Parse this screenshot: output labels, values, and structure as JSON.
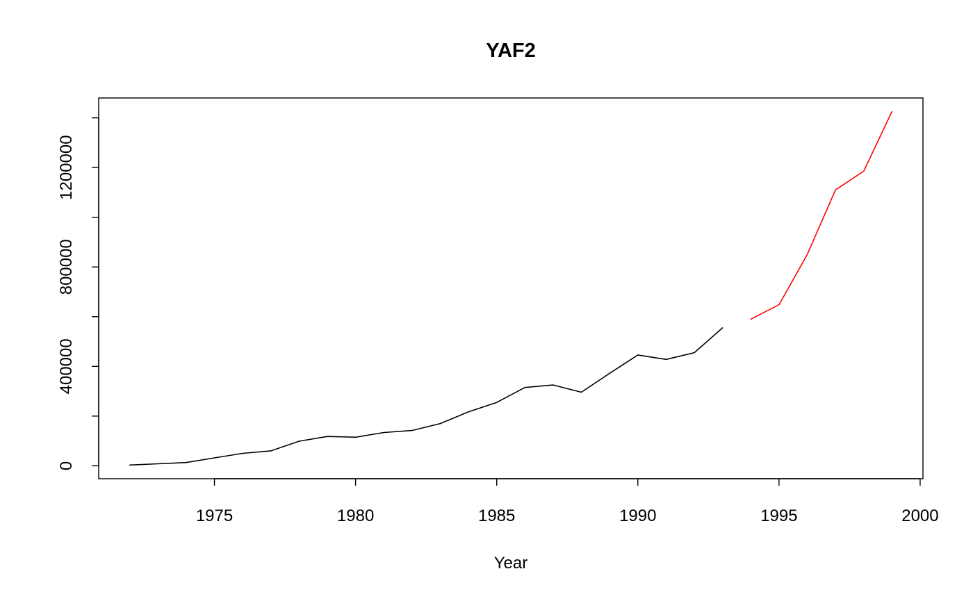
{
  "chart_data": {
    "type": "line",
    "title": "YAF2",
    "xlabel": "Year",
    "ylabel": "",
    "xlim": [
      1970.9,
      2000.1
    ],
    "ylim": [
      -52000,
      1480000
    ],
    "xticks": [
      1975,
      1980,
      1985,
      1990,
      1995,
      2000
    ],
    "yticks": [
      0,
      200000,
      400000,
      600000,
      800000,
      1000000,
      1200000,
      1400000
    ],
    "ytick_labels": [
      "0",
      "",
      "400000",
      "",
      "800000",
      "",
      "1200000",
      ""
    ],
    "grid": false,
    "legend": "none",
    "series": [
      {
        "color": "#000000",
        "x": [
          1972,
          1973,
          1974,
          1975,
          1976,
          1977,
          1978,
          1979,
          1980,
          1981,
          1982,
          1983,
          1984,
          1985,
          1986,
          1987,
          1988,
          1989,
          1990,
          1991,
          1992,
          1993
        ],
        "y": [
          3000,
          8000,
          13000,
          32000,
          50000,
          60000,
          99000,
          118000,
          115000,
          134000,
          142000,
          170000,
          217000,
          255000,
          315000,
          325000,
          296000,
          372000,
          446000,
          428000,
          455000,
          555000
        ]
      },
      {
        "color": "#ff0000",
        "x": [
          1994,
          1995,
          1996,
          1997,
          1998,
          1999
        ],
        "y": [
          590000,
          648000,
          850000,
          1110000,
          1185000,
          1425000
        ]
      }
    ]
  }
}
